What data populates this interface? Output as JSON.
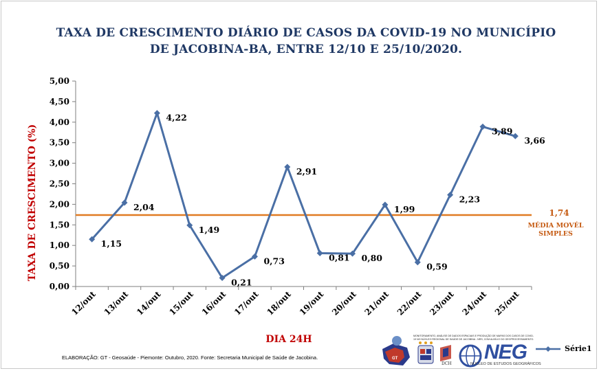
{
  "chart_data": {
    "type": "line",
    "title_line1": "TAXA DE CRESCIMENTO DIÁRIO DE CASOS  DA COVID-19 NO MUNICÍPIO",
    "title_line2": "DE JACOBINA-BA,  ENTRE 12/10 E 25/10/2020.",
    "xlabel": "DIA 24H",
    "ylabel": "TAXA DE CRESCIMENTO (%)",
    "categories": [
      "12/out",
      "13/out",
      "14/out",
      "15/out",
      "16/out",
      "17/out",
      "18/out",
      "19/out",
      "20/out",
      "21/out",
      "22/out",
      "23/out",
      "24/out",
      "25/out"
    ],
    "series": [
      {
        "name": "Série1",
        "values": [
          1.15,
          2.04,
          4.22,
          1.49,
          0.21,
          0.73,
          2.91,
          0.81,
          0.8,
          1.99,
          0.59,
          2.23,
          3.89,
          3.66
        ],
        "labels": [
          "1,15",
          "2,04",
          "4,22",
          "1,49",
          "0,21",
          "0,73",
          "2,91",
          "0,81",
          "0,80",
          "1,99",
          "0,59",
          "2,23",
          "3,89",
          "3,66"
        ],
        "color": "#4a6fa5"
      }
    ],
    "average": {
      "value": 1.74,
      "value_label": "1,74",
      "label_line1": "MÉDIA MOVÉL",
      "label_line2": "SIMPLES",
      "color": "#e07b22"
    },
    "ylim": [
      0,
      5
    ],
    "yticks": [
      "0,00",
      "0,50",
      "1,00",
      "1,50",
      "2,00",
      "2,50",
      "3,00",
      "3,50",
      "4,00",
      "4,50",
      "5,00"
    ],
    "legend_position": "bottom-right",
    "grid": false
  },
  "footer": "ELABORAÇÃO: GT - Geosaúde - Piemonte: Outubro, 2020. Fonte: Secretaria Municipal de Saúde de Jacobina.",
  "logos": {
    "neg": "NEG",
    "neg_subtitle": "NÚCLEO DE ESTUDOS GEOGRÁFICOS",
    "dch": "DCH",
    "gt": "GT",
    "monitoring_text": "MONITORAMENTO, ANÁLISE DE DADOS ESPACIAIS E PRODUÇÃO DE MAPAS DOS CASOS DE COVID-19 NO NÚCLEO REGIONAL DE SAÚDE DE JACOBINA - NRS, COM AUXÍLIO DO GEOPROCESSAMENTO."
  },
  "colors": {
    "title": "#1f3864",
    "axis_title": "#c00000",
    "series": "#4a6fa5",
    "average": "#e07b22"
  }
}
